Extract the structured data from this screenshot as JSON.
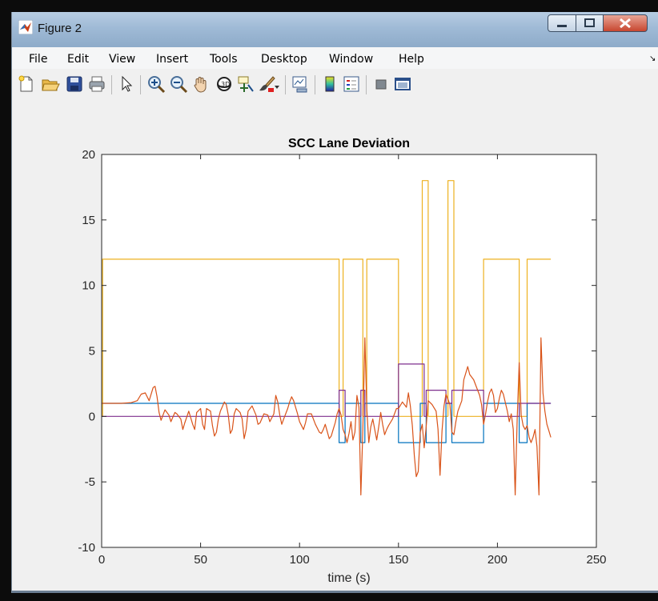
{
  "window": {
    "title": "Figure 2"
  },
  "menu": {
    "items": [
      "File",
      "Edit",
      "View",
      "Insert",
      "Tools",
      "Desktop",
      "Window",
      "Help"
    ]
  },
  "toolbar": {
    "icons": [
      "new-figure-icon",
      "open-file-icon",
      "save-icon",
      "print-icon",
      "pointer-icon",
      "zoom-in-icon",
      "zoom-out-icon",
      "pan-icon",
      "rotate-3d-icon",
      "data-cursor-icon",
      "brush-icon",
      "brush-dropdown-icon",
      "link-plot-icon",
      "colorbar-icon",
      "legend-icon",
      "hide-plot-tools-icon",
      "show-plot-tools-icon"
    ]
  },
  "colors": {
    "blue": "#0072bd",
    "orange": "#d95319",
    "yellow": "#edb120",
    "purple": "#7e2f8e"
  },
  "chart_data": {
    "type": "line",
    "title": "SCC Lane Deviation",
    "xlabel": "time (s)",
    "ylabel": "",
    "xlim": [
      0,
      250
    ],
    "ylim": [
      -10,
      20
    ],
    "xticks": [
      0,
      50,
      100,
      150,
      200,
      250
    ],
    "yticks": [
      -10,
      -5,
      0,
      5,
      10,
      15,
      20
    ],
    "grid": false,
    "series": [
      {
        "color": "#edb120",
        "points": [
          [
            0,
            0
          ],
          [
            0.5,
            0
          ],
          [
            0.5,
            12
          ],
          [
            120,
            12
          ],
          [
            120,
            0
          ],
          [
            122,
            0
          ],
          [
            122,
            12
          ],
          [
            132,
            12
          ],
          [
            132,
            0
          ],
          [
            134,
            0
          ],
          [
            134,
            12
          ],
          [
            150,
            12
          ],
          [
            150,
            0
          ],
          [
            162,
            0
          ],
          [
            162,
            18
          ],
          [
            165,
            18
          ],
          [
            165,
            0
          ],
          [
            175,
            0
          ],
          [
            175,
            18
          ],
          [
            178,
            18
          ],
          [
            178,
            0
          ],
          [
            193,
            0
          ],
          [
            193,
            12
          ],
          [
            211,
            12
          ],
          [
            211,
            0
          ],
          [
            215,
            0
          ],
          [
            215,
            12
          ],
          [
            227,
            12
          ]
        ]
      },
      {
        "color": "#0072bd",
        "points": [
          [
            0,
            1
          ],
          [
            120,
            1
          ],
          [
            120,
            -2
          ],
          [
            123,
            -2
          ],
          [
            123,
            1
          ],
          [
            131,
            1
          ],
          [
            131,
            -2
          ],
          [
            133,
            -2
          ],
          [
            133,
            1
          ],
          [
            150,
            1
          ],
          [
            150,
            -2
          ],
          [
            161,
            -2
          ],
          [
            161,
            1
          ],
          [
            164,
            1
          ],
          [
            164,
            -2
          ],
          [
            174,
            -2
          ],
          [
            174,
            1
          ],
          [
            177,
            1
          ],
          [
            177,
            -2
          ],
          [
            193,
            -2
          ],
          [
            193,
            1
          ],
          [
            211,
            1
          ],
          [
            211,
            -2
          ],
          [
            215,
            -2
          ],
          [
            215,
            1
          ],
          [
            227,
            1
          ]
        ]
      },
      {
        "color": "#7e2f8e",
        "points": [
          [
            0,
            0
          ],
          [
            120,
            0
          ],
          [
            120,
            2
          ],
          [
            123,
            2
          ],
          [
            123,
            0
          ],
          [
            131,
            0
          ],
          [
            131,
            2
          ],
          [
            133,
            2
          ],
          [
            133,
            0
          ],
          [
            150,
            0
          ],
          [
            150,
            4
          ],
          [
            163,
            4
          ],
          [
            163,
            0
          ],
          [
            164,
            0
          ],
          [
            164,
            2
          ],
          [
            174,
            2
          ],
          [
            174,
            1
          ],
          [
            177,
            1
          ],
          [
            177,
            2
          ],
          [
            193,
            2
          ],
          [
            193,
            0
          ],
          [
            211,
            0
          ],
          [
            211,
            1
          ],
          [
            227,
            1
          ]
        ]
      },
      {
        "color": "#d95319",
        "points": [
          [
            0,
            1
          ],
          [
            5,
            1
          ],
          [
            10,
            1
          ],
          [
            15,
            1.05
          ],
          [
            18,
            1.2
          ],
          [
            20,
            1.7
          ],
          [
            22,
            1.8
          ],
          [
            24,
            1.2
          ],
          [
            26,
            2.2
          ],
          [
            27,
            2.3
          ],
          [
            28,
            1.5
          ],
          [
            29,
            0.3
          ],
          [
            30,
            -0.3
          ],
          [
            32,
            0.5
          ],
          [
            34,
            0.1
          ],
          [
            35,
            -0.4
          ],
          [
            37,
            0.3
          ],
          [
            38,
            0.2
          ],
          [
            40,
            -0.2
          ],
          [
            41,
            -1
          ],
          [
            42,
            -0.5
          ],
          [
            44,
            0.4
          ],
          [
            46,
            -0.6
          ],
          [
            47,
            -1
          ],
          [
            48,
            0.3
          ],
          [
            50,
            0.6
          ],
          [
            51,
            -0.6
          ],
          [
            52,
            -1
          ],
          [
            53,
            0.6
          ],
          [
            55,
            0.4
          ],
          [
            56,
            -0.7
          ],
          [
            57,
            -1.5
          ],
          [
            58,
            -1.2
          ],
          [
            59,
            -0.2
          ],
          [
            60,
            0.4
          ],
          [
            62,
            1.1
          ],
          [
            63,
            0.9
          ],
          [
            64,
            0.1
          ],
          [
            65,
            -1.3
          ],
          [
            66,
            -1
          ],
          [
            67,
            0.2
          ],
          [
            68,
            0.6
          ],
          [
            70,
            0.3
          ],
          [
            71,
            -0.2
          ],
          [
            72,
            -1.7
          ],
          [
            73,
            -1
          ],
          [
            74,
            0.4
          ],
          [
            76,
            0.8
          ],
          [
            78,
            0.1
          ],
          [
            79,
            -0.6
          ],
          [
            80,
            -0.5
          ],
          [
            82,
            0.2
          ],
          [
            84,
            0.1
          ],
          [
            85,
            -0.4
          ],
          [
            87,
            0.2
          ],
          [
            88,
            1.6
          ],
          [
            89,
            1.1
          ],
          [
            90,
            0.1
          ],
          [
            91,
            -0.6
          ],
          [
            92,
            -0.2
          ],
          [
            94,
            0.6
          ],
          [
            95,
            1.1
          ],
          [
            96,
            1.5
          ],
          [
            97,
            1.2
          ],
          [
            99,
            0.2
          ],
          [
            100,
            -0.4
          ],
          [
            102,
            -1
          ],
          [
            103,
            -0.5
          ],
          [
            104,
            0.2
          ],
          [
            106,
            0.2
          ],
          [
            108,
            -0.6
          ],
          [
            110,
            -1.2
          ],
          [
            111,
            -1.3
          ],
          [
            112,
            -1
          ],
          [
            113,
            -0.6
          ],
          [
            115,
            -1.7
          ],
          [
            116,
            -1.5
          ],
          [
            117,
            -1
          ],
          [
            118,
            -0.5
          ],
          [
            119,
            0.2
          ],
          [
            120,
            0.6
          ],
          [
            121,
            0.1
          ],
          [
            122,
            -1
          ],
          [
            123,
            -1.4
          ],
          [
            124,
            -2
          ],
          [
            125,
            -1.3
          ],
          [
            126,
            -0.4
          ],
          [
            127,
            -1.8
          ],
          [
            128,
            -1.2
          ],
          [
            129,
            1.6
          ],
          [
            130,
            0.7
          ],
          [
            131,
            -6
          ],
          [
            132,
            -1
          ],
          [
            133,
            6
          ],
          [
            134,
            0.6
          ],
          [
            135,
            -2
          ],
          [
            136,
            -0.8
          ],
          [
            137,
            -0.2
          ],
          [
            139,
            -1.8
          ],
          [
            140,
            -0.8
          ],
          [
            141,
            0.3
          ],
          [
            142,
            -0.6
          ],
          [
            143,
            -1.4
          ],
          [
            144,
            -1
          ],
          [
            145,
            -0.7
          ],
          [
            147,
            -0.2
          ],
          [
            149,
            0.6
          ],
          [
            150,
            0.6
          ],
          [
            152,
            1.1
          ],
          [
            154,
            0.7
          ],
          [
            155,
            1.8
          ],
          [
            156,
            0.8
          ],
          [
            157,
            -0.7
          ],
          [
            158,
            -3
          ],
          [
            159,
            -4.6
          ],
          [
            160,
            -4.2
          ],
          [
            161,
            -1.2
          ],
          [
            162,
            -0.6
          ],
          [
            163,
            -2.4
          ],
          [
            164,
            -0.8
          ],
          [
            165,
            1.2
          ],
          [
            167,
            0.9
          ],
          [
            169,
            0.4
          ],
          [
            170,
            -1
          ],
          [
            171,
            -4.5
          ],
          [
            172,
            -1.1
          ],
          [
            173,
            0.8
          ],
          [
            174,
            1.7
          ],
          [
            176,
            0.9
          ],
          [
            177,
            -1.2
          ],
          [
            178,
            -1.4
          ],
          [
            179,
            -0.4
          ],
          [
            180,
            0.4
          ],
          [
            182,
            1.2
          ],
          [
            183,
            2.8
          ],
          [
            185,
            3.8
          ],
          [
            186,
            3.2
          ],
          [
            188,
            2.8
          ],
          [
            190,
            2
          ],
          [
            191,
            1.6
          ],
          [
            192,
            0.9
          ],
          [
            193,
            -0.6
          ],
          [
            194,
            0.2
          ],
          [
            195,
            1.1
          ],
          [
            196,
            1.8
          ],
          [
            197,
            2.1
          ],
          [
            198,
            1.6
          ],
          [
            199,
            0.3
          ],
          [
            200,
            0.6
          ],
          [
            201,
            1.4
          ],
          [
            202,
            2
          ],
          [
            203,
            1.7
          ],
          [
            205,
            0.4
          ],
          [
            206,
            -0.4
          ],
          [
            207,
            0.2
          ],
          [
            208,
            -1
          ],
          [
            209,
            -6
          ],
          [
            210,
            -0.2
          ],
          [
            211,
            4.1
          ],
          [
            212,
            0.1
          ],
          [
            213,
            -0.7
          ],
          [
            214,
            -1
          ],
          [
            215,
            -0.7
          ],
          [
            216,
            -1.6
          ],
          [
            217,
            -2
          ],
          [
            218,
            -1.6
          ],
          [
            219,
            -1
          ],
          [
            220,
            -2.3
          ],
          [
            221,
            -6
          ],
          [
            222,
            6
          ],
          [
            223,
            1.8
          ],
          [
            224,
            0.4
          ],
          [
            225,
            -0.6
          ],
          [
            226,
            -1.1
          ],
          [
            227,
            -1.6
          ]
        ]
      }
    ]
  }
}
